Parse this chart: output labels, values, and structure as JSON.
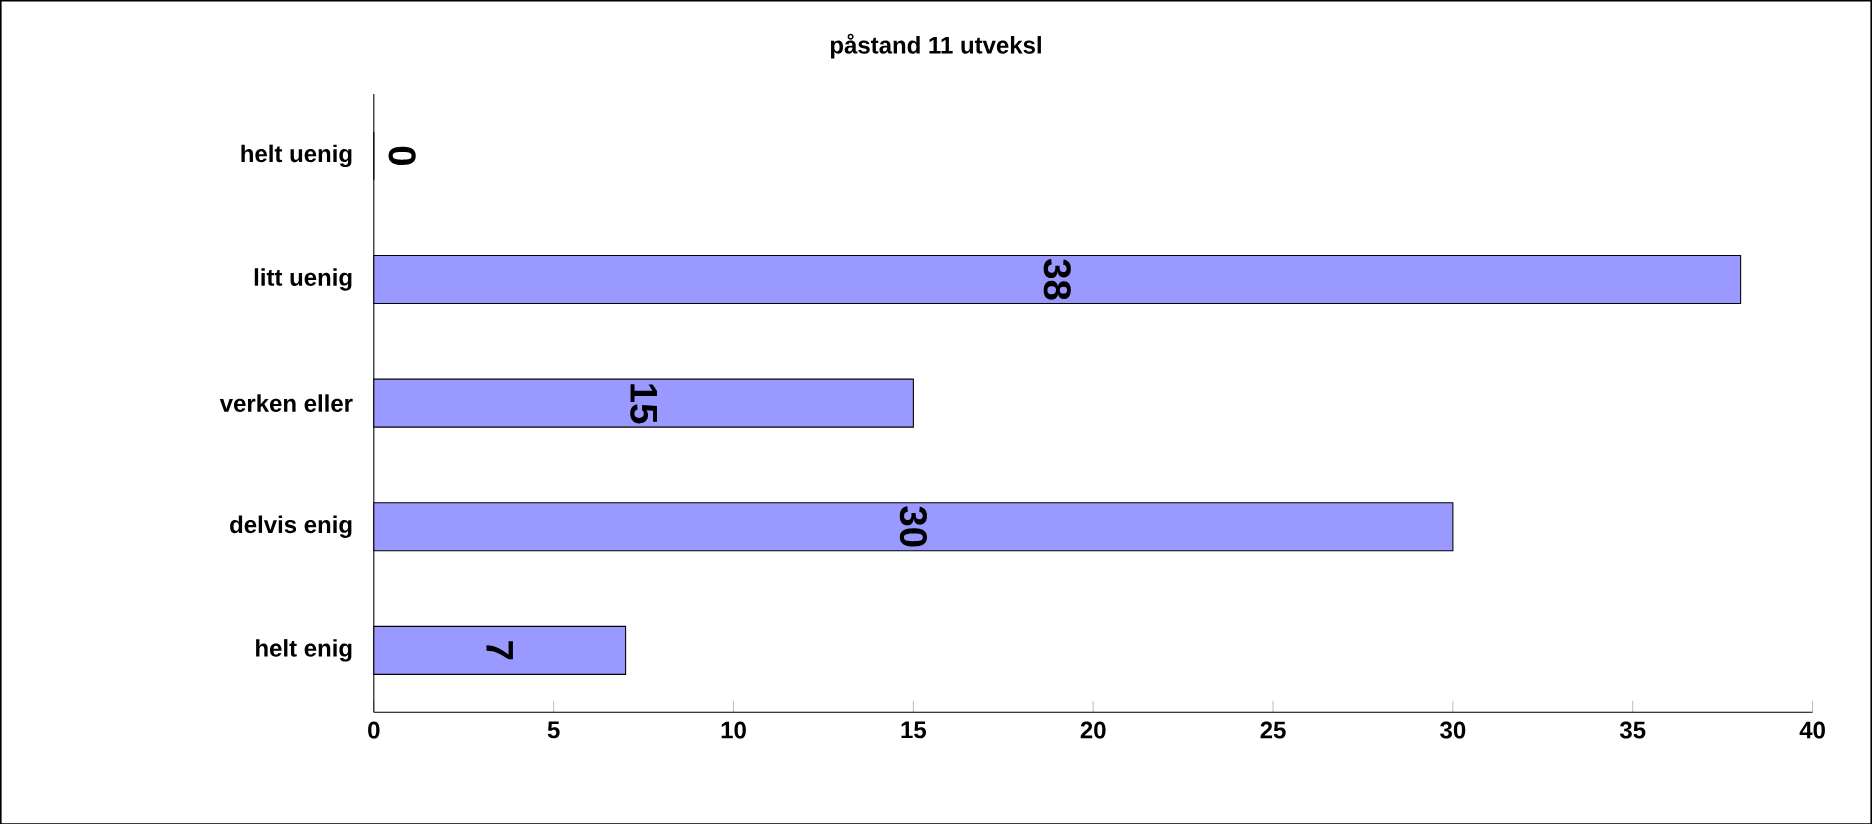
{
  "chart_data": {
    "type": "bar",
    "orientation": "horizontal",
    "title": "påstand 11 utveksl",
    "categories": [
      "helt uenig",
      "litt uenig",
      "verken eller",
      "delvis enig",
      "helt enig"
    ],
    "values": [
      0,
      38,
      15,
      30,
      7
    ],
    "color": "#9999ff",
    "xlim": [
      0,
      40
    ],
    "xticks": [
      0,
      5,
      10,
      15,
      20,
      25,
      30,
      35,
      40
    ],
    "data_labels": true
  }
}
